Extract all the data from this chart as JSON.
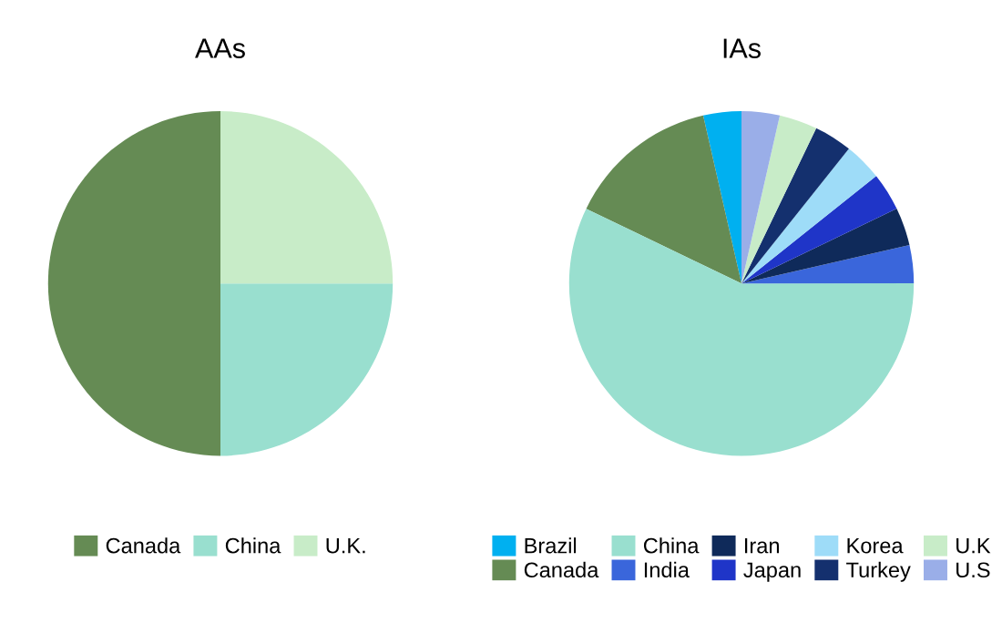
{
  "chart_data": [
    {
      "type": "pie",
      "title": "AAs",
      "categories": [
        "Canada",
        "China",
        "U.K."
      ],
      "values": [
        50,
        25,
        25
      ],
      "colors": [
        "#658b54",
        "#99dfcf",
        "#c8ecc8"
      ],
      "legend": "bottom"
    },
    {
      "type": "pie",
      "title": "IAs",
      "categories": [
        "Brazil",
        "Canada",
        "China",
        "India",
        "Iran",
        "Japan",
        "Korea",
        "Turkey",
        "U.K",
        "U.S"
      ],
      "values": [
        3.57,
        14.29,
        57.15,
        3.57,
        3.57,
        3.57,
        3.57,
        3.57,
        3.57,
        3.57
      ],
      "colors": [
        "#00b0f0",
        "#658b54",
        "#99dfcf",
        "#3a66db",
        "#0f2a5a",
        "#1f35c8",
        "#9edcf8",
        "#14306e",
        "#c8ecc8",
        "#9aaee8"
      ],
      "legend": "bottom"
    }
  ]
}
